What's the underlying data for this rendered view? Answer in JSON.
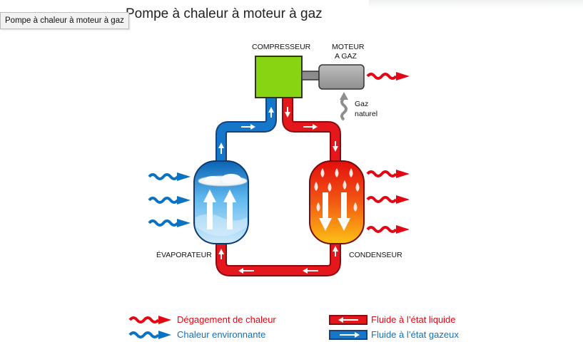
{
  "page": {
    "title": "Pompe à chaleur à moteur à gaz",
    "tooltip": "Pompe à chaleur à moteur à gaz"
  },
  "diagram": {
    "compressor_label": "COMPRESSEUR",
    "engine_label_line1": "MOTEUR",
    "engine_label_line2": "A GAZ",
    "gas_label_line1": "Gaz",
    "gas_label_line2": "naturel",
    "evaporator_label": "ÉVAPORATEUR",
    "condenser_label": "CONDENSEUR"
  },
  "legend": {
    "heat_release": "Dégagement de chaleur",
    "ambient_heat": "Chaleur environnante",
    "liquid_fluid": "Fluide à l’état liquide",
    "gas_fluid": "Fluide à l’état gazeux"
  },
  "colors": {
    "red": "#e30613",
    "blue": "#0c72c2",
    "compressor_green": "#84d30f",
    "engine_grey": "#a9a9a9"
  }
}
